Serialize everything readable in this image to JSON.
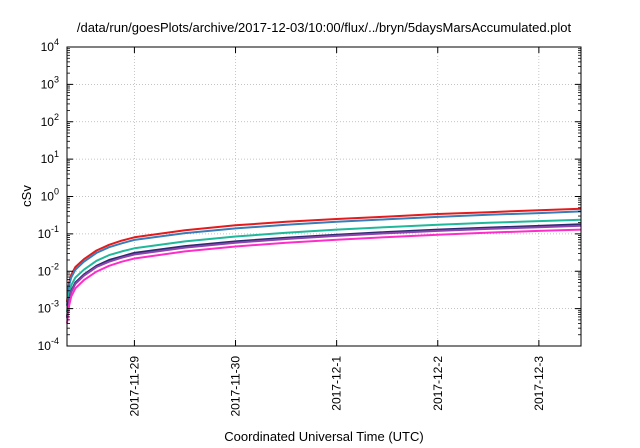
{
  "chart_data": {
    "type": "line",
    "title": "/data/run/goesPlots/archive/2017-12-03/10:00/flux/../bryn/5daysMarsAccumulated.plot",
    "xlabel": "Coordinated Universal Time (UTC)",
    "ylabel": "cSv",
    "y_scale": "log",
    "ylim": [
      0.0001,
      10000
    ],
    "xlim": [
      "2017-11-28T08:00",
      "2017-12-03T10:00"
    ],
    "grid": true,
    "legend": "none",
    "x_ticks": [
      {
        "date": "2017-11-29",
        "label": "2017-11-29"
      },
      {
        "date": "2017-11-30",
        "label": "2017-11-30"
      },
      {
        "date": "2017-12-01",
        "label": "2017-12-1"
      },
      {
        "date": "2017-12-02",
        "label": "2017-12-2"
      },
      {
        "date": "2017-12-03",
        "label": "2017-12-3"
      }
    ],
    "y_ticks": [
      {
        "value": 0.0001,
        "base": "10",
        "exp": "-4"
      },
      {
        "value": 0.001,
        "base": "10",
        "exp": "-3"
      },
      {
        "value": 0.01,
        "base": "10",
        "exp": "-2"
      },
      {
        "value": 0.1,
        "base": "10",
        "exp": "-1"
      },
      {
        "value": 1,
        "base": "10",
        "exp": "0"
      },
      {
        "value": 10,
        "base": "10",
        "exp": "1"
      },
      {
        "value": 100,
        "base": "10",
        "exp": "2"
      },
      {
        "value": 1000,
        "base": "10",
        "exp": "3"
      },
      {
        "value": 10000,
        "base": "10",
        "exp": "4"
      }
    ],
    "x": [
      "2017-11-28T08:00",
      "2017-11-28T08:30",
      "2017-11-28T09:00",
      "2017-11-28T10:00",
      "2017-11-28T12:00",
      "2017-11-28T15:00",
      "2017-11-28T18:00",
      "2017-11-28T21:00",
      "2017-11-29T00:00",
      "2017-11-29T12:00",
      "2017-11-30T00:00",
      "2017-11-30T12:00",
      "2017-12-01T00:00",
      "2017-12-01T12:00",
      "2017-12-02T00:00",
      "2017-12-02T12:00",
      "2017-12-03T00:00",
      "2017-12-03T10:00"
    ],
    "series": [
      {
        "color": "#e41a1c",
        "values": [
          0.0015,
          0.005,
          0.008,
          0.013,
          0.021,
          0.036,
          0.051,
          0.066,
          0.081,
          0.125,
          0.17,
          0.21,
          0.25,
          0.29,
          0.34,
          0.38,
          0.43,
          0.47
        ]
      },
      {
        "color": "#377eb8",
        "values": [
          0.0012,
          0.0042,
          0.0068,
          0.011,
          0.018,
          0.031,
          0.044,
          0.056,
          0.069,
          0.105,
          0.14,
          0.175,
          0.21,
          0.245,
          0.285,
          0.325,
          0.36,
          0.4
        ]
      },
      {
        "color": "#1fb89a",
        "values": [
          0.0008,
          0.0025,
          0.0042,
          0.0068,
          0.011,
          0.019,
          0.027,
          0.034,
          0.041,
          0.063,
          0.085,
          0.107,
          0.13,
          0.152,
          0.175,
          0.198,
          0.22,
          0.24
        ]
      },
      {
        "color": "#2a2a72",
        "values": [
          0.0006,
          0.0018,
          0.003,
          0.005,
          0.0082,
          0.014,
          0.02,
          0.025,
          0.031,
          0.047,
          0.063,
          0.079,
          0.095,
          0.112,
          0.13,
          0.147,
          0.163,
          0.18
        ]
      },
      {
        "color": "#8e44ad",
        "values": [
          0.00055,
          0.0016,
          0.0028,
          0.0046,
          0.0076,
          0.013,
          0.018,
          0.023,
          0.028,
          0.043,
          0.058,
          0.073,
          0.088,
          0.104,
          0.12,
          0.136,
          0.151,
          0.165
        ]
      },
      {
        "color": "#ff2dc8",
        "values": [
          0.0004,
          0.0012,
          0.0021,
          0.0035,
          0.0058,
          0.0098,
          0.014,
          0.018,
          0.022,
          0.034,
          0.046,
          0.058,
          0.07,
          0.082,
          0.095,
          0.108,
          0.12,
          0.13
        ]
      }
    ]
  }
}
